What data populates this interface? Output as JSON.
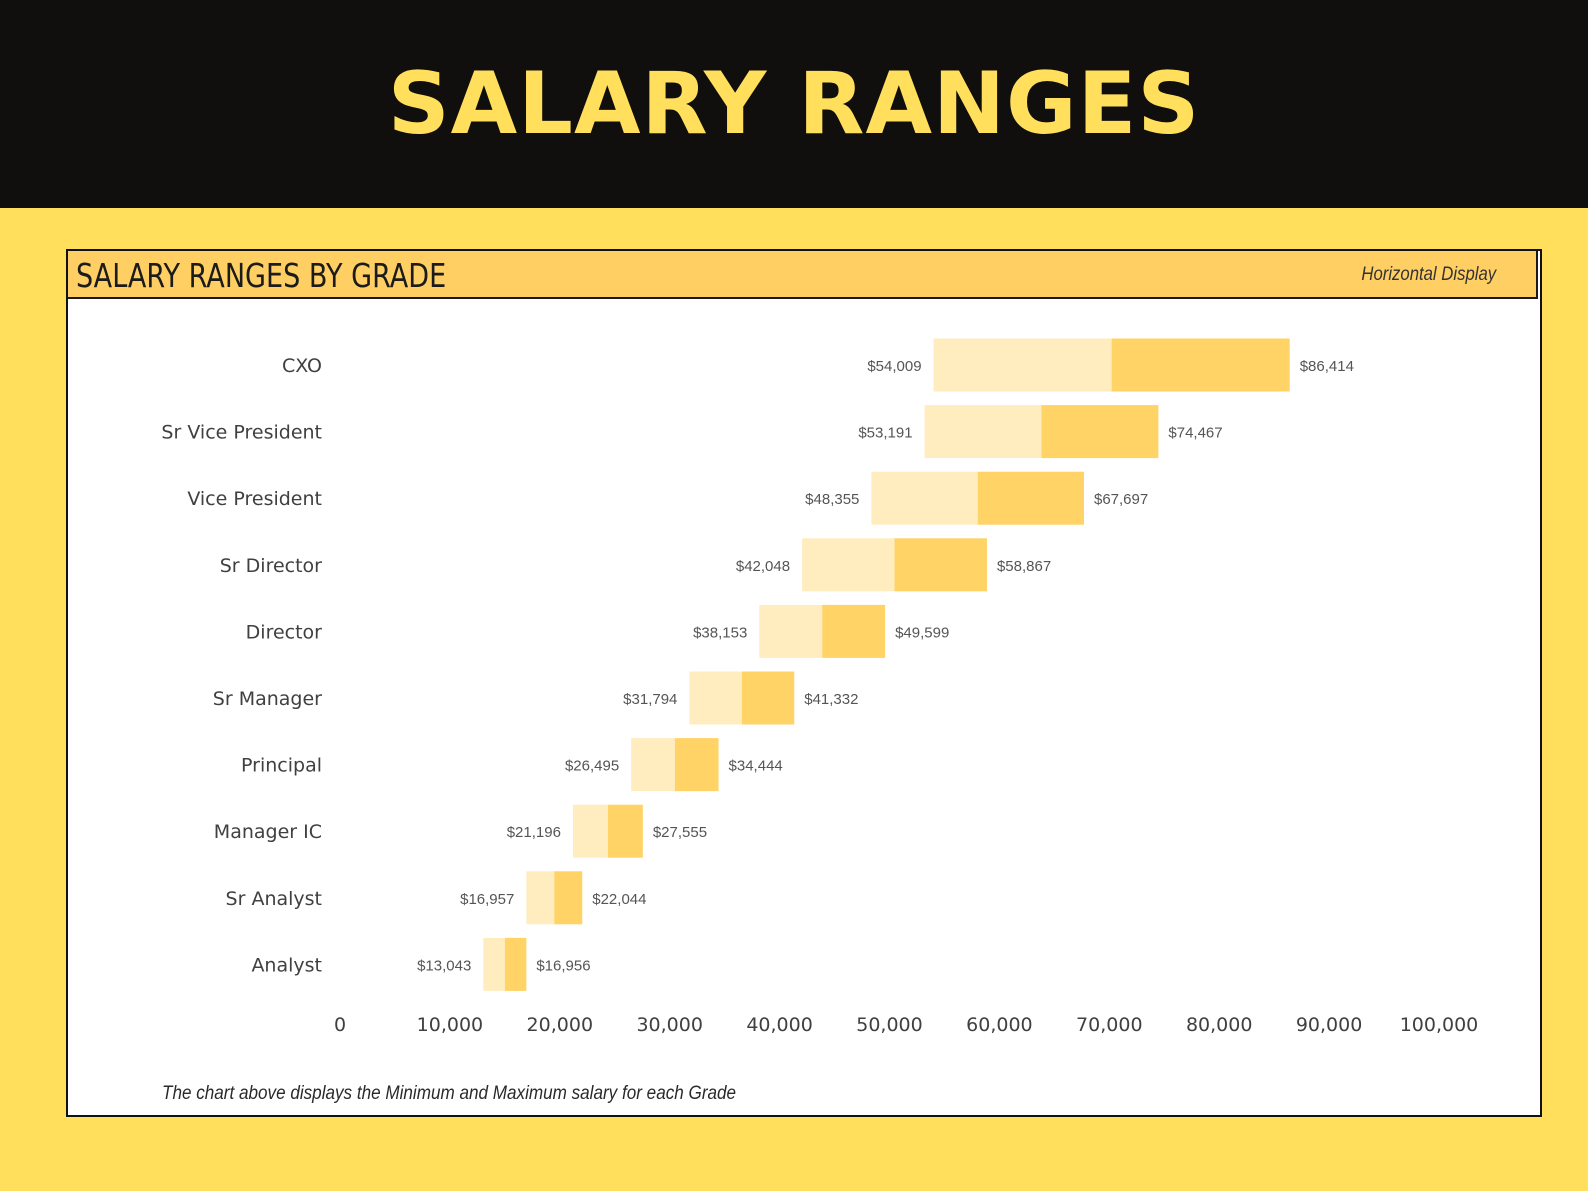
{
  "banner": {
    "title": "SALARY RANGES"
  },
  "card": {
    "title": "SALARY RANGES BY GRADE",
    "subtitle": "Horizontal Display",
    "footnote": "The chart above displays the Minimum and Maximum salary for each Grade"
  },
  "colors": {
    "background": "#ffdf5c",
    "banner": "#110f0e",
    "header": "#ffcf63",
    "bar_light": "#ffedc0",
    "bar_dark": "#ffd365"
  },
  "chart_data": {
    "type": "bar",
    "orientation": "horizontal",
    "categories": [
      "CXO",
      "Sr Vice President",
      "Vice President",
      "Sr Director",
      "Director",
      "Sr Manager",
      "Principal",
      "Manager IC",
      "Sr Analyst",
      "Analyst"
    ],
    "min": [
      54009,
      53191,
      48355,
      42048,
      38153,
      31794,
      26495,
      21196,
      16957,
      13043
    ],
    "max": [
      86414,
      74467,
      67697,
      58867,
      49599,
      41332,
      34444,
      27555,
      22044,
      16956
    ],
    "min_labels": [
      "$54,009",
      "$53,191",
      "$48,355",
      "$42,048",
      "$38,153",
      "$31,794",
      "$26,495",
      "$21,196",
      "$16,957",
      "$13,043"
    ],
    "max_labels": [
      "$86,414",
      "$74,467",
      "$67,697",
      "$58,867",
      "$49,599",
      "$41,332",
      "$34,444",
      "$27,555",
      "$22,044",
      "$16,956"
    ],
    "xlim": [
      0,
      100000
    ],
    "xticks": [
      0,
      10000,
      20000,
      30000,
      40000,
      50000,
      60000,
      70000,
      80000,
      90000,
      100000
    ],
    "xtick_labels": [
      "0",
      "10,000",
      "20,000",
      "30,000",
      "40,000",
      "50,000",
      "60,000",
      "70,000",
      "80,000",
      "90,000",
      "100,000"
    ],
    "grid": false,
    "legend": "none"
  }
}
